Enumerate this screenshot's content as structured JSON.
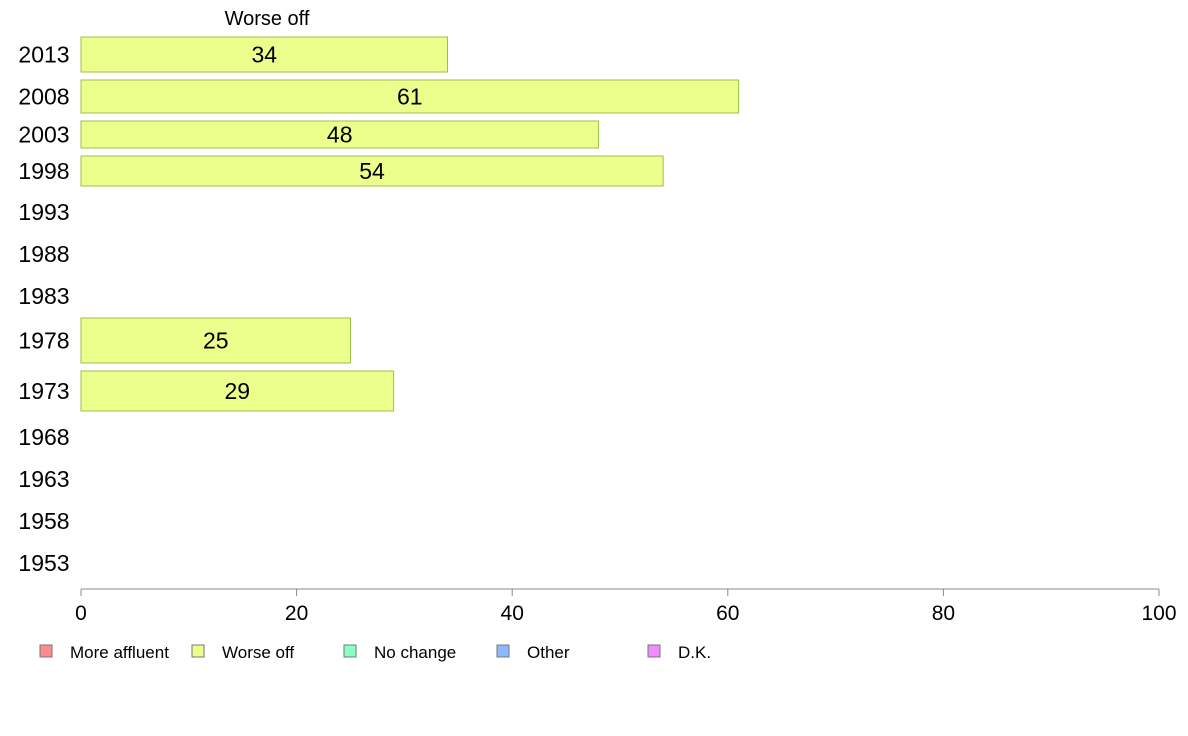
{
  "chart_data": {
    "type": "bar",
    "orientation": "horizontal",
    "title": "Worse off",
    "categories": [
      "2013",
      "2008",
      "2003",
      "1998",
      "1993",
      "1988",
      "1983",
      "1978",
      "1973",
      "1968",
      "1963",
      "1958",
      "1953"
    ],
    "series": [
      {
        "name": "Worse off",
        "values": [
          34,
          61,
          48,
          54,
          null,
          null,
          null,
          25,
          29,
          null,
          null,
          null,
          null
        ]
      }
    ],
    "data_labels": [
      "34",
      "61",
      "48",
      "54",
      "",
      "",
      "",
      "25",
      "29",
      "",
      "",
      "",
      ""
    ],
    "xlim": [
      0,
      100
    ],
    "xticks": [
      0,
      20,
      40,
      60,
      80,
      100
    ],
    "xtick_labels": [
      "0",
      "20",
      "40",
      "60",
      "80",
      "100"
    ],
    "grid": false,
    "legend": {
      "placement": "bottom-left",
      "entries": [
        {
          "label": "More affluent",
          "color": "#ff8c8c"
        },
        {
          "label": "Worse off",
          "color": "#ecff8c"
        },
        {
          "label": "No change",
          "color": "#8cffc6"
        },
        {
          "label": "Other",
          "color": "#8cb8ff"
        },
        {
          "label": "D.K.",
          "color": "#f08cff"
        }
      ]
    },
    "colors": {
      "bar_fill": "#ecff8c",
      "bar_stroke": "#9dbf4a",
      "axis": "#888888"
    }
  }
}
